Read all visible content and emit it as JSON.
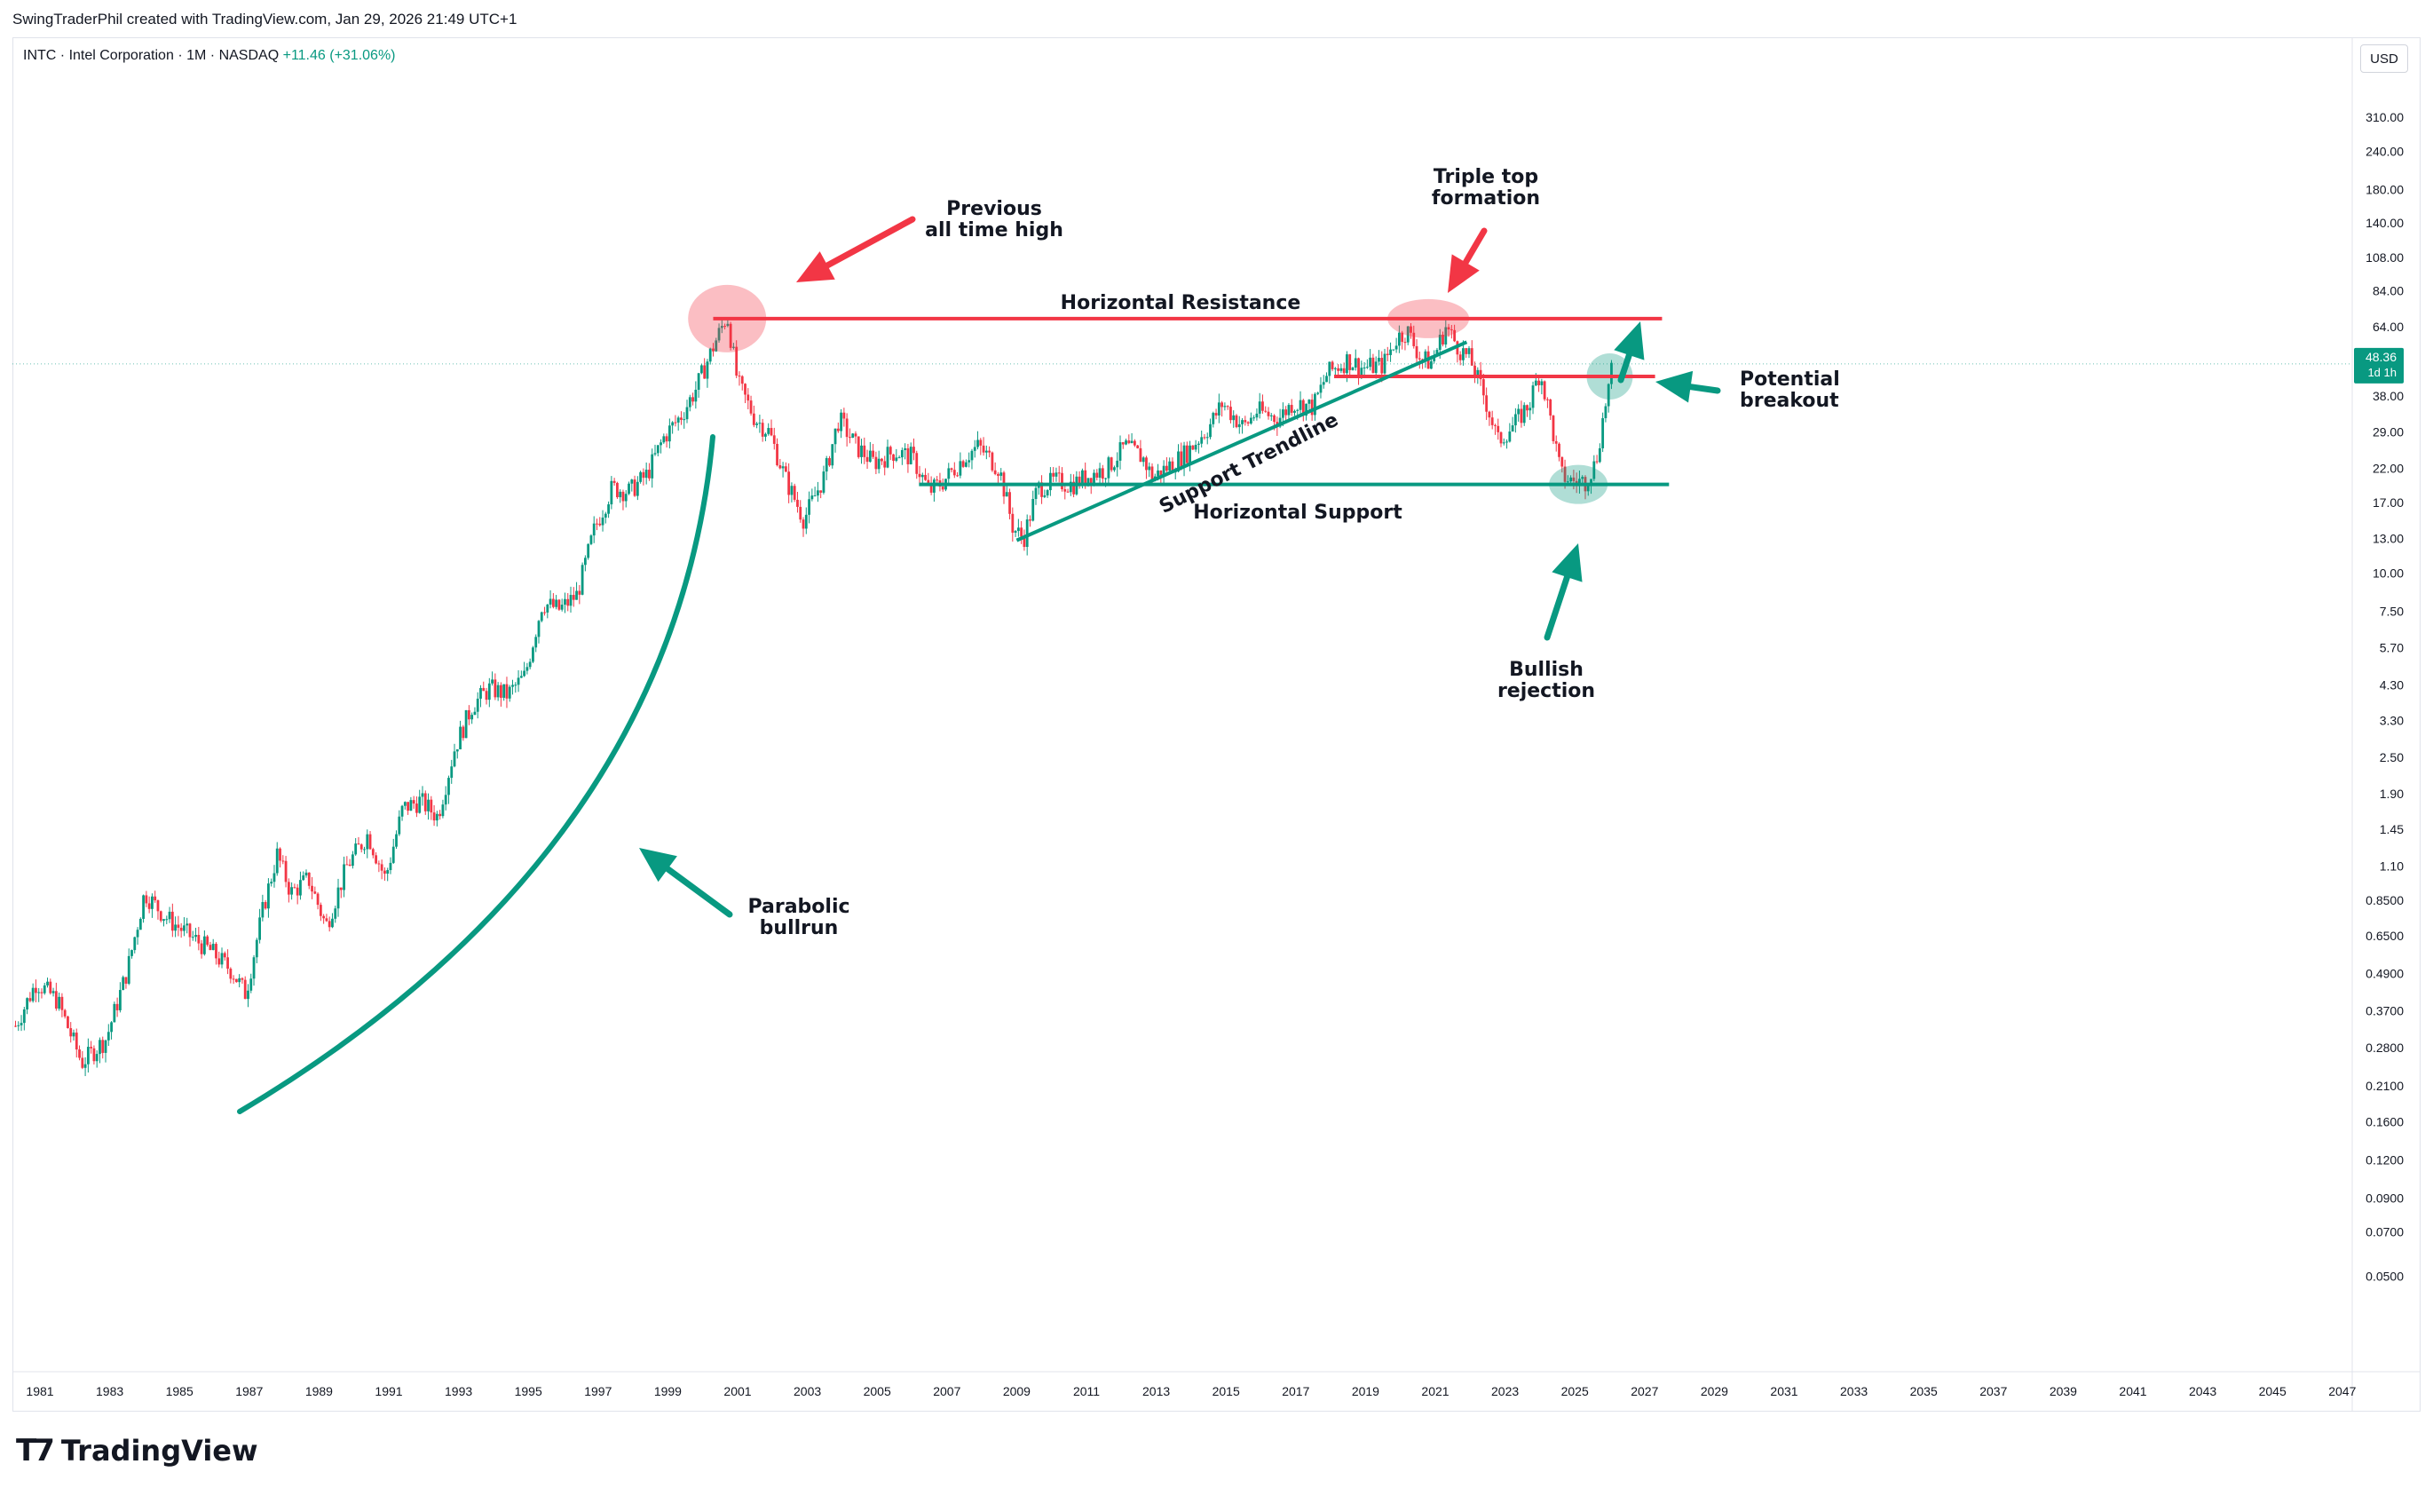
{
  "credit": "SwingTraderPhil created with TradingView.com, Jan 29, 2026 21:49 UTC+1",
  "legend": {
    "symbol": "INTC",
    "name": "Intel Corporation",
    "interval": "1M",
    "exchange": "NASDAQ",
    "change": "+11.46 (+31.06%)"
  },
  "currency_button": "USD",
  "brand": "TradingView",
  "colors": {
    "up": "#089981",
    "down": "#f23645",
    "resistance": "#f23645",
    "support": "#089981",
    "price_badge": "#089981"
  },
  "chart_data": {
    "type": "candlestick",
    "interval": "1M",
    "y_scale": "log",
    "y_ticks": [
      "310.00",
      "240.00",
      "180.00",
      "140.00",
      "108.00",
      "84.00",
      "64.00",
      "38.00",
      "29.00",
      "22.00",
      "17.00",
      "13.00",
      "10.00",
      "7.50",
      "5.70",
      "4.30",
      "3.30",
      "2.50",
      "1.90",
      "1.45",
      "1.10",
      "0.8500",
      "0.6500",
      "0.4900",
      "0.3700",
      "0.2800",
      "0.2100",
      "0.1600",
      "0.1200",
      "0.0900",
      "0.0700",
      "0.0500"
    ],
    "x_ticks": [
      "1981",
      "1983",
      "1985",
      "1987",
      "1989",
      "1991",
      "1993",
      "1995",
      "1997",
      "1999",
      "2001",
      "2003",
      "2005",
      "2007",
      "2009",
      "2011",
      "2013",
      "2015",
      "2017",
      "2019",
      "2021",
      "2023",
      "2025",
      "2027",
      "2029",
      "2031",
      "2033",
      "2035",
      "2037",
      "2039",
      "2041",
      "2043",
      "2045",
      "2047"
    ],
    "last_price": {
      "value": "48.36",
      "countdown": "1d 1h"
    },
    "price_path": [
      [
        1980.3,
        0.33
      ],
      [
        1980.9,
        0.46
      ],
      [
        1981.5,
        0.4
      ],
      [
        1982.2,
        0.25
      ],
      [
        1982.9,
        0.3
      ],
      [
        1983.5,
        0.5
      ],
      [
        1984.0,
        0.9
      ],
      [
        1984.6,
        0.75
      ],
      [
        1985.3,
        0.65
      ],
      [
        1985.9,
        0.58
      ],
      [
        1986.5,
        0.5
      ],
      [
        1986.9,
        0.42
      ],
      [
        1987.4,
        0.8
      ],
      [
        1987.8,
        1.2
      ],
      [
        1988.2,
        0.9
      ],
      [
        1988.7,
        1.0
      ],
      [
        1989.2,
        0.7
      ],
      [
        1989.8,
        1.1
      ],
      [
        1990.4,
        1.4
      ],
      [
        1990.9,
        1.0
      ],
      [
        1991.4,
        1.7
      ],
      [
        1991.9,
        1.8
      ],
      [
        1992.4,
        1.6
      ],
      [
        1992.9,
        2.7
      ],
      [
        1993.4,
        3.7
      ],
      [
        1993.9,
        4.2
      ],
      [
        1994.4,
        4.0
      ],
      [
        1994.9,
        4.6
      ],
      [
        1995.4,
        8.0
      ],
      [
        1995.9,
        7.6
      ],
      [
        1996.4,
        8.5
      ],
      [
        1996.9,
        14.0
      ],
      [
        1997.4,
        19.0
      ],
      [
        1997.9,
        18.5
      ],
      [
        1998.4,
        21.0
      ],
      [
        1998.9,
        28.0
      ],
      [
        1999.4,
        33.0
      ],
      [
        1999.8,
        40.0
      ],
      [
        2000.3,
        55.0
      ],
      [
        2000.7,
        70.0
      ],
      [
        2001.0,
        42.0
      ],
      [
        2001.5,
        32.0
      ],
      [
        2001.9,
        29.0
      ],
      [
        2002.4,
        20.0
      ],
      [
        2002.9,
        15.0
      ],
      [
        2003.5,
        21.0
      ],
      [
        2003.9,
        32.0
      ],
      [
        2004.4,
        26.0
      ],
      [
        2004.9,
        23.0
      ],
      [
        2005.5,
        25.0
      ],
      [
        2006.0,
        24.0
      ],
      [
        2006.5,
        18.5
      ],
      [
        2006.9,
        20.0
      ],
      [
        2007.5,
        24.0
      ],
      [
        2007.9,
        26.0
      ],
      [
        2008.5,
        22.0
      ],
      [
        2008.9,
        14.0
      ],
      [
        2009.2,
        13.0
      ],
      [
        2009.6,
        19.0
      ],
      [
        2010.1,
        20.0
      ],
      [
        2010.6,
        19.5
      ],
      [
        2011.1,
        21.0
      ],
      [
        2011.6,
        22.0
      ],
      [
        2012.1,
        26.0
      ],
      [
        2012.6,
        24.0
      ],
      [
        2012.9,
        20.5
      ],
      [
        2013.5,
        23.0
      ],
      [
        2013.9,
        25.0
      ],
      [
        2014.5,
        30.0
      ],
      [
        2014.9,
        36.0
      ],
      [
        2015.5,
        30.0
      ],
      [
        2015.9,
        34.0
      ],
      [
        2016.5,
        32.0
      ],
      [
        2016.9,
        36.0
      ],
      [
        2017.5,
        35.0
      ],
      [
        2017.9,
        45.0
      ],
      [
        2018.5,
        50.0
      ],
      [
        2018.9,
        47.0
      ],
      [
        2019.5,
        48.0
      ],
      [
        2019.9,
        59.0
      ],
      [
        2020.2,
        62.0
      ],
      [
        2020.6,
        50.0
      ],
      [
        2020.9,
        49.0
      ],
      [
        2021.3,
        64.0
      ],
      [
        2021.7,
        54.0
      ],
      [
        2022.0,
        50.0
      ],
      [
        2022.4,
        38.0
      ],
      [
        2022.8,
        27.0
      ],
      [
        2023.3,
        31.0
      ],
      [
        2023.7,
        36.0
      ],
      [
        2024.0,
        46.0
      ],
      [
        2024.3,
        32.0
      ],
      [
        2024.6,
        21.0
      ],
      [
        2024.9,
        20.0
      ],
      [
        2025.3,
        20.0
      ],
      [
        2025.6,
        23.0
      ],
      [
        2025.9,
        37.0
      ],
      [
        2026.1,
        48.36
      ]
    ],
    "levels": [
      {
        "name": "Horizontal Resistance",
        "price": 68,
        "from": 2000.3,
        "to": 2027.5
      },
      {
        "name": "Horizontal Support",
        "price": 19.5,
        "from": 2006.2,
        "to": 2027.7
      }
    ],
    "trendline": {
      "name": "Support Trendline",
      "from": [
        2009.0,
        12.8
      ],
      "to": [
        2021.9,
        57
      ]
    },
    "annotations": {
      "ath": [
        "Previous",
        "all time high"
      ],
      "triple_top": [
        "Triple top",
        "formation"
      ],
      "breakout": [
        "Potential",
        "breakout"
      ],
      "rejection": [
        "Bullish",
        "rejection"
      ],
      "bullrun": [
        "Parabolic",
        "bullrun"
      ],
      "resistance_label": "Horizontal Resistance",
      "support_label": "Horizontal Support",
      "trend_label": "Support Trendline"
    }
  }
}
